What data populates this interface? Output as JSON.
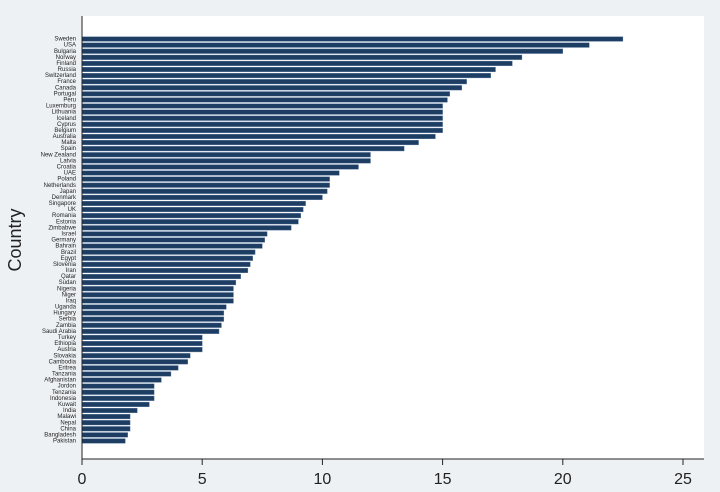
{
  "chart_data": {
    "type": "hbar",
    "y_label": "Country",
    "categories": [
      "Sweden",
      "USA",
      "Bulgaria",
      "Norway",
      "Finland",
      "Russia",
      "Switzerland",
      "France",
      "Canada",
      "Portugal",
      "Peru",
      "Luxemburg",
      "Lithuania",
      "Iceland",
      "Cyprus",
      "Belgium",
      "Australia",
      "Malta",
      "Spain",
      "New Zealand",
      "Latvia",
      "Croatia",
      "UAE",
      "Poland",
      "Netherlands",
      "Japan",
      "Denmark",
      "Singapore",
      "UK",
      "Romania",
      "Estonia",
      "Zimbabwe",
      "Israel",
      "Germany",
      "Bahrain",
      "Brazil",
      "Egypt",
      "Slovenia",
      "Iran",
      "Qatar",
      "Sudan",
      "Nigeria",
      "Niger",
      "Iraq",
      "Uganda",
      "Hungary",
      "Serbia",
      "Zambia",
      "Saudi Arabia",
      "Turkey",
      "Ethiopia",
      "Austria",
      "Slovakia",
      "Cambodia",
      "Eritrea",
      "Tanzania",
      "Afghanistan",
      "Jordon",
      "Tenzania",
      "Indonesia",
      "Kuwait",
      "India",
      "Malawi",
      "Nepal",
      "China",
      "Bangladesh",
      "Pakistan"
    ],
    "values": [
      22.5,
      21.1,
      20.0,
      18.3,
      17.9,
      17.2,
      17.0,
      16.0,
      15.8,
      15.3,
      15.2,
      15.0,
      15.0,
      15.0,
      15.0,
      15.0,
      14.7,
      14.0,
      13.4,
      12.0,
      12.0,
      11.5,
      10.7,
      10.3,
      10.3,
      10.2,
      10.0,
      9.3,
      9.2,
      9.1,
      9.0,
      8.7,
      7.7,
      7.6,
      7.5,
      7.2,
      7.1,
      7.0,
      6.9,
      6.6,
      6.4,
      6.3,
      6.3,
      6.3,
      6.0,
      5.9,
      5.9,
      5.8,
      5.7,
      5.0,
      5.0,
      5.0,
      4.5,
      4.4,
      4.0,
      3.7,
      3.3,
      3.0,
      3.0,
      3.0,
      2.8,
      2.3,
      2.0,
      2.0,
      2.0,
      1.9,
      1.8
    ],
    "color": "#1e3d63",
    "xlim": [
      0,
      25
    ],
    "xticks": [
      0,
      5,
      10,
      15,
      20,
      25
    ]
  }
}
